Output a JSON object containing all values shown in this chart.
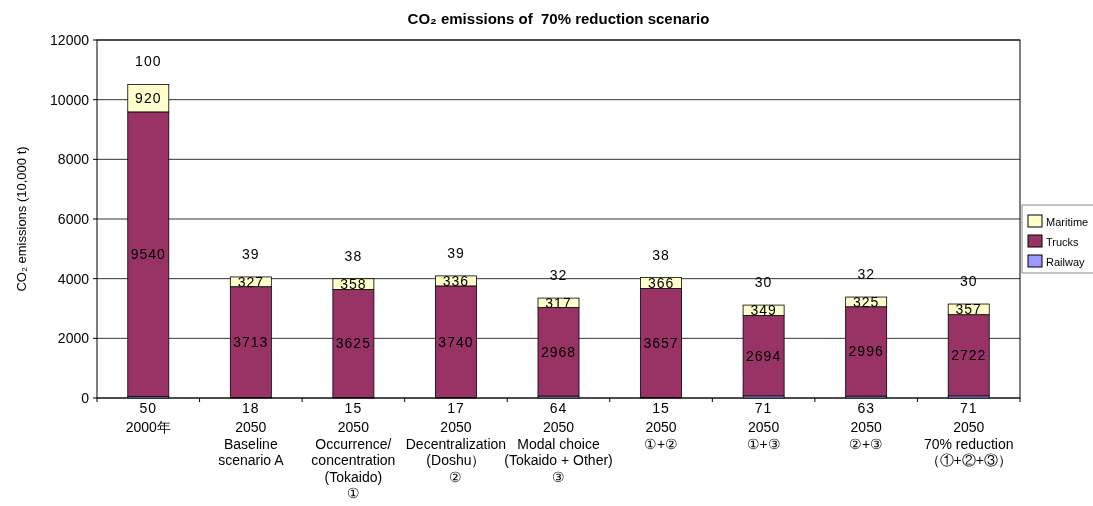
{
  "chart_data": {
    "type": "bar",
    "stacked": true,
    "title": "CO₂ emissions of  70% reduction scenario",
    "ylabel": "CO₂ emissions (10,000 t)",
    "categories": [
      "2000年",
      "2050\nBaseline\nscenario A",
      "2050\nOccurrence/\nconcentration\n(Tokaido)\n①",
      "2050\nDecentralization\n(Doshu）\n②",
      "2050\nModal choice\n(Tokaido + Other)\n③",
      "2050\n①+②",
      "2050\n①+③",
      "2050\n②+③",
      "2050\n70% reduction\n（①+②+③）"
    ],
    "series": [
      {
        "name": "Railway",
        "color": "#9999ff",
        "values": [
          50,
          18,
          15,
          17,
          64,
          15,
          71,
          63,
          71
        ]
      },
      {
        "name": "Trucks",
        "color": "#993366",
        "values": [
          9540,
          3713,
          3625,
          3740,
          2968,
          3657,
          2694,
          2996,
          2722
        ]
      },
      {
        "name": "Maritime",
        "color": "#ffffcc",
        "values": [
          920,
          327,
          358,
          336,
          317,
          366,
          349,
          325,
          357
        ]
      }
    ],
    "annotations": [
      {
        "text": "100",
        "x": "2000年",
        "y": 10510
      },
      {
        "text": "39",
        "x": "2050\nBaseline\nscenario A",
        "y": 4058
      },
      {
        "text": "38",
        "x": "2050\nOccurrence/\nconcentration\n(Tokaido)\n①",
        "y": 3998
      },
      {
        "text": "39",
        "x": "2050\nDecentralization\n(Doshu）\n②",
        "y": 4093
      },
      {
        "text": "32",
        "x": "2050\nModal choice\n(Tokaido + Other)\n③",
        "y": 3349
      },
      {
        "text": "38",
        "x": "2050\n①+②",
        "y": 4038
      },
      {
        "text": "30",
        "x": "2050\n①+③",
        "y": 3114
      },
      {
        "text": "32",
        "x": "2050\n②+③",
        "y": 3384
      },
      {
        "text": "30",
        "x": "2050\n70% reduction\n（①+②+③）",
        "y": 3150
      }
    ],
    "data_labels": true,
    "ylim": [
      0,
      12000
    ],
    "yticks": [
      0,
      2000,
      4000,
      6000,
      8000,
      10000,
      12000
    ],
    "grid": "y",
    "legend": "right"
  }
}
